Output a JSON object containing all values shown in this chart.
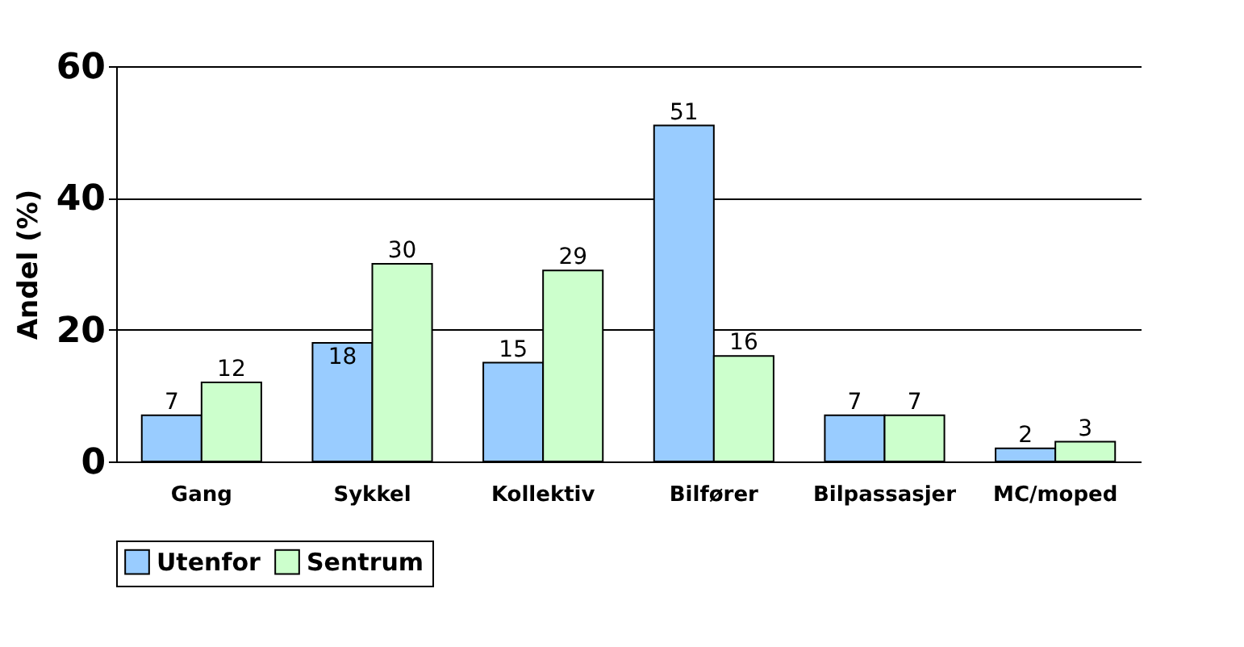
{
  "chart_data": {
    "type": "bar",
    "ylabel": "Andel (%)",
    "categories": [
      "Gang",
      "Sykkel",
      "Kollektiv",
      "Bilfører",
      "Bilpassasjer",
      "MC/moped"
    ],
    "series": [
      {
        "name": "Utenfor",
        "color": "#99ccff",
        "values": [
          7,
          18,
          15,
          51,
          7,
          2
        ]
      },
      {
        "name": "Sentrum",
        "color": "#ccffcc",
        "values": [
          12,
          30,
          29,
          16,
          7,
          3
        ]
      }
    ],
    "ylim": [
      0,
      60
    ],
    "yticks": [
      0,
      20,
      40,
      60
    ],
    "grid": "y",
    "legend": "bottom",
    "data_labels": true
  }
}
